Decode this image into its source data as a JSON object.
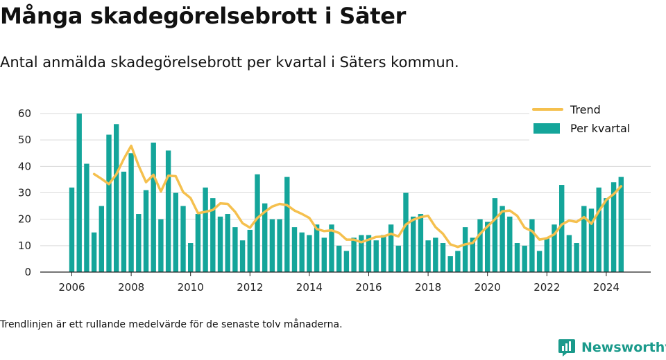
{
  "header": {
    "title": "Många skadegörelsebrott i Säter",
    "subtitle": "Antal anmälda skadegörelsebrott per kvartal i Säters kommun."
  },
  "footer": {
    "note": "Trendlinjen är ett rullande medelvärde för de senaste tolv månaderna.",
    "brand": "Newsworthy"
  },
  "colors": {
    "bar": "#14a59a",
    "trend": "#f5c04e",
    "grid": "#d9d9d9",
    "brand": "#1a9a8b"
  },
  "icons": {
    "brand_logo": "newsworthy-chart-bubble-icon"
  },
  "chart_data": {
    "type": "bar",
    "legend": {
      "position": "top-right",
      "entries": [
        "Trend",
        "Per kvartal"
      ]
    },
    "grid": true,
    "ylim": [
      0,
      60
    ],
    "yticks": [
      0,
      10,
      20,
      30,
      40,
      50,
      60
    ],
    "xlim": [
      2005.4,
      2025.6
    ],
    "xticks": [
      "2006",
      "2008",
      "2010",
      "2012",
      "2014",
      "2016",
      "2018",
      "2020",
      "2022",
      "2024"
    ],
    "quarters": [
      "2006-Q1",
      "2006-Q2",
      "2006-Q3",
      "2006-Q4",
      "2007-Q1",
      "2007-Q2",
      "2007-Q3",
      "2007-Q4",
      "2008-Q1",
      "2008-Q2",
      "2008-Q3",
      "2008-Q4",
      "2009-Q1",
      "2009-Q2",
      "2009-Q3",
      "2009-Q4",
      "2010-Q1",
      "2010-Q2",
      "2010-Q3",
      "2010-Q4",
      "2011-Q1",
      "2011-Q2",
      "2011-Q3",
      "2011-Q4",
      "2012-Q1",
      "2012-Q2",
      "2012-Q3",
      "2012-Q4",
      "2013-Q1",
      "2013-Q2",
      "2013-Q3",
      "2013-Q4",
      "2014-Q1",
      "2014-Q2",
      "2014-Q3",
      "2014-Q4",
      "2015-Q1",
      "2015-Q2",
      "2015-Q3",
      "2015-Q4",
      "2016-Q1",
      "2016-Q2",
      "2016-Q3",
      "2016-Q4",
      "2017-Q1",
      "2017-Q2",
      "2017-Q3",
      "2017-Q4",
      "2018-Q1",
      "2018-Q2",
      "2018-Q3",
      "2018-Q4",
      "2019-Q1",
      "2019-Q2",
      "2019-Q3",
      "2019-Q4",
      "2020-Q1",
      "2020-Q2",
      "2020-Q3",
      "2020-Q4",
      "2021-Q1",
      "2021-Q2",
      "2021-Q3",
      "2021-Q4",
      "2022-Q1",
      "2022-Q2",
      "2022-Q3",
      "2022-Q4",
      "2023-Q1",
      "2023-Q2",
      "2023-Q3",
      "2023-Q4",
      "2024-Q1",
      "2024-Q2",
      "2024-Q3"
    ],
    "series": [
      {
        "name": "Per kvartal",
        "type": "bar",
        "values": [
          32,
          60,
          41,
          15,
          25,
          52,
          56,
          38,
          45,
          22,
          31,
          49,
          20,
          46,
          30,
          25,
          11,
          22,
          32,
          28,
          21,
          22,
          17,
          12,
          16,
          37,
          26,
          20,
          20,
          36,
          17,
          15,
          14,
          18,
          13,
          18,
          10,
          8,
          13,
          14,
          14,
          12,
          14,
          18,
          10,
          30,
          21,
          22,
          12,
          13,
          11,
          6,
          8,
          17,
          13,
          20,
          19,
          28,
          25,
          21,
          11,
          10,
          20,
          8,
          13,
          18,
          33,
          14,
          11,
          25,
          24,
          32,
          28,
          34,
          36
        ]
      },
      {
        "name": "Trend",
        "type": "line",
        "points": [
          [
            "2006-Q4",
            37.1
          ],
          [
            "2007-Q1",
            35.3
          ],
          [
            "2007-Q2",
            33.3
          ],
          [
            "2007-Q3",
            37.0
          ],
          [
            "2007-Q4",
            42.8
          ],
          [
            "2008-Q1",
            47.8
          ],
          [
            "2008-Q2",
            40.3
          ],
          [
            "2008-Q3",
            34.0
          ],
          [
            "2008-Q4",
            36.8
          ],
          [
            "2009-Q1",
            30.5
          ],
          [
            "2009-Q2",
            36.5
          ],
          [
            "2009-Q3",
            36.3
          ],
          [
            "2009-Q4",
            30.3
          ],
          [
            "2010-Q1",
            28.0
          ],
          [
            "2010-Q2",
            22.3
          ],
          [
            "2010-Q3",
            22.8
          ],
          [
            "2010-Q4",
            23.5
          ],
          [
            "2011-Q1",
            26.0
          ],
          [
            "2011-Q2",
            25.8
          ],
          [
            "2011-Q3",
            22.8
          ],
          [
            "2011-Q4",
            18.5
          ],
          [
            "2012-Q1",
            16.8
          ],
          [
            "2012-Q2",
            20.5
          ],
          [
            "2012-Q3",
            22.8
          ],
          [
            "2012-Q4",
            24.8
          ],
          [
            "2013-Q1",
            25.8
          ],
          [
            "2013-Q2",
            25.3
          ],
          [
            "2013-Q3",
            23.3
          ],
          [
            "2013-Q4",
            22.0
          ],
          [
            "2014-Q1",
            20.5
          ],
          [
            "2014-Q2",
            16.3
          ],
          [
            "2014-Q3",
            15.5
          ],
          [
            "2014-Q4",
            15.8
          ],
          [
            "2015-Q1",
            14.8
          ],
          [
            "2015-Q2",
            12.3
          ],
          [
            "2015-Q3",
            12.3
          ],
          [
            "2015-Q4",
            11.3
          ],
          [
            "2016-Q1",
            12.3
          ],
          [
            "2016-Q2",
            13.3
          ],
          [
            "2016-Q3",
            13.5
          ],
          [
            "2016-Q4",
            14.5
          ],
          [
            "2017-Q1",
            13.5
          ],
          [
            "2017-Q2",
            18.0
          ],
          [
            "2017-Q3",
            19.8
          ],
          [
            "2017-Q4",
            20.8
          ],
          [
            "2018-Q1",
            21.3
          ],
          [
            "2018-Q2",
            17.0
          ],
          [
            "2018-Q3",
            14.5
          ],
          [
            "2018-Q4",
            10.5
          ],
          [
            "2019-Q1",
            9.5
          ],
          [
            "2019-Q2",
            10.5
          ],
          [
            "2019-Q3",
            11.0
          ],
          [
            "2019-Q4",
            14.5
          ],
          [
            "2020-Q1",
            17.3
          ],
          [
            "2020-Q2",
            20.0
          ],
          [
            "2020-Q3",
            23.0
          ],
          [
            "2020-Q4",
            23.3
          ],
          [
            "2021-Q1",
            21.3
          ],
          [
            "2021-Q2",
            16.8
          ],
          [
            "2021-Q3",
            15.5
          ],
          [
            "2021-Q4",
            12.3
          ],
          [
            "2022-Q1",
            12.8
          ],
          [
            "2022-Q2",
            14.3
          ],
          [
            "2022-Q3",
            18.0
          ],
          [
            "2022-Q4",
            19.5
          ],
          [
            "2023-Q1",
            19.0
          ],
          [
            "2023-Q2",
            20.8
          ],
          [
            "2023-Q3",
            18.3
          ],
          [
            "2023-Q4",
            23.0
          ],
          [
            "2024-Q1",
            27.3
          ],
          [
            "2024-Q2",
            29.5
          ],
          [
            "2024-Q3",
            32.5
          ]
        ]
      }
    ]
  }
}
